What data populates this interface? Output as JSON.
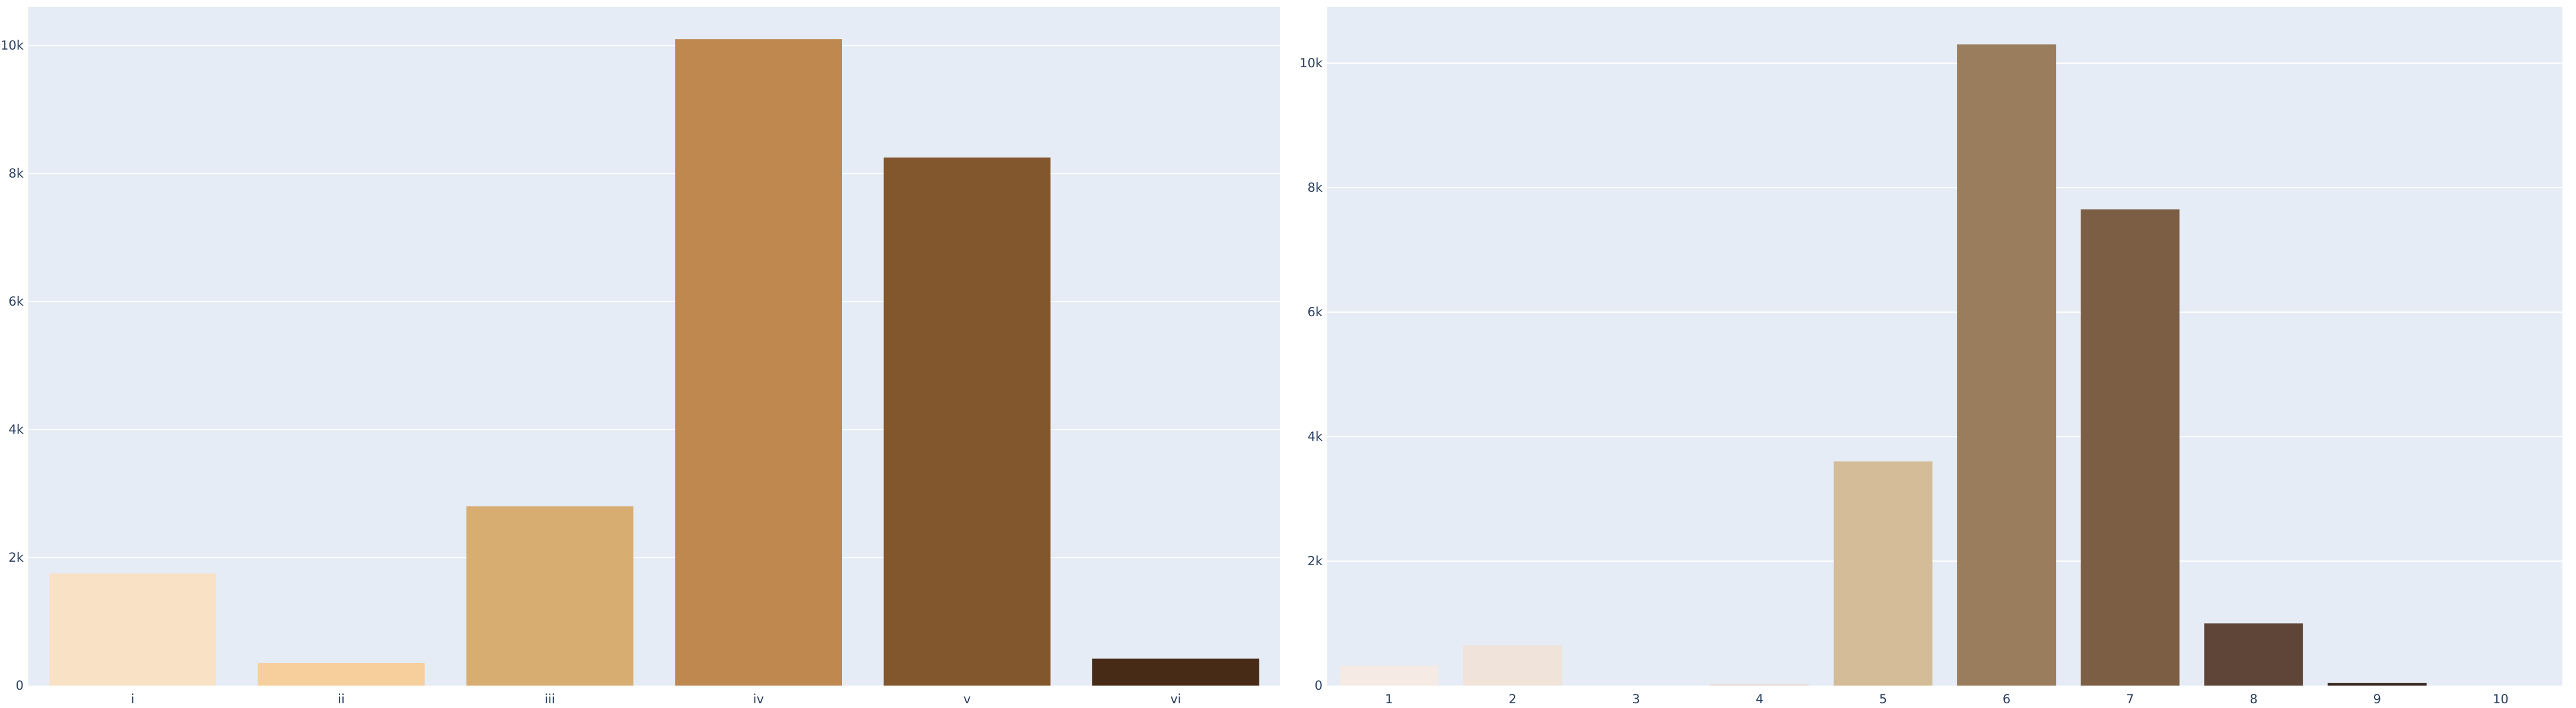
{
  "chart_data": [
    {
      "type": "bar",
      "title": "",
      "xlabel": "",
      "ylabel": "",
      "categories": [
        "i",
        "ii",
        "iii",
        "iv",
        "v",
        "vi"
      ],
      "values": [
        1750,
        350,
        2800,
        10100,
        8250,
        420
      ],
      "colors": [
        "#f8e1c4",
        "#f6cf9d",
        "#d8ad72",
        "#be884e",
        "#83572e",
        "#482b16"
      ],
      "ylim": [
        0,
        10600
      ],
      "yticks": [
        0,
        2000,
        4000,
        6000,
        8000,
        10000
      ],
      "ytick_labels": [
        "0",
        "2k",
        "4k",
        "6k",
        "8k",
        "10k"
      ],
      "grid": true
    },
    {
      "type": "bar",
      "title": "",
      "xlabel": "",
      "ylabel": "",
      "categories": [
        "1",
        "2",
        "3",
        "4",
        "5",
        "6",
        "7",
        "8",
        "9",
        "10"
      ],
      "values": [
        320,
        650,
        0,
        20,
        3600,
        10300,
        7650,
        1000,
        40,
        0
      ],
      "colors": [
        "#f5ebe4",
        "#efe3da",
        "#efe3da",
        "#e8dccf",
        "#d4bc98",
        "#9a7d5c",
        "#7c5e45",
        "#5e4537",
        "#3a2820",
        "#3a2820"
      ],
      "ylim": [
        0,
        10900
      ],
      "yticks": [
        0,
        2000,
        4000,
        6000,
        8000,
        10000
      ],
      "ytick_labels": [
        "0",
        "2k",
        "4k",
        "6k",
        "8k",
        "10k"
      ],
      "grid": true
    }
  ],
  "style": {
    "plot_bg": "#e5ecf6",
    "grid_color": "#ffffff",
    "tick_color": "#2a3f5f"
  }
}
